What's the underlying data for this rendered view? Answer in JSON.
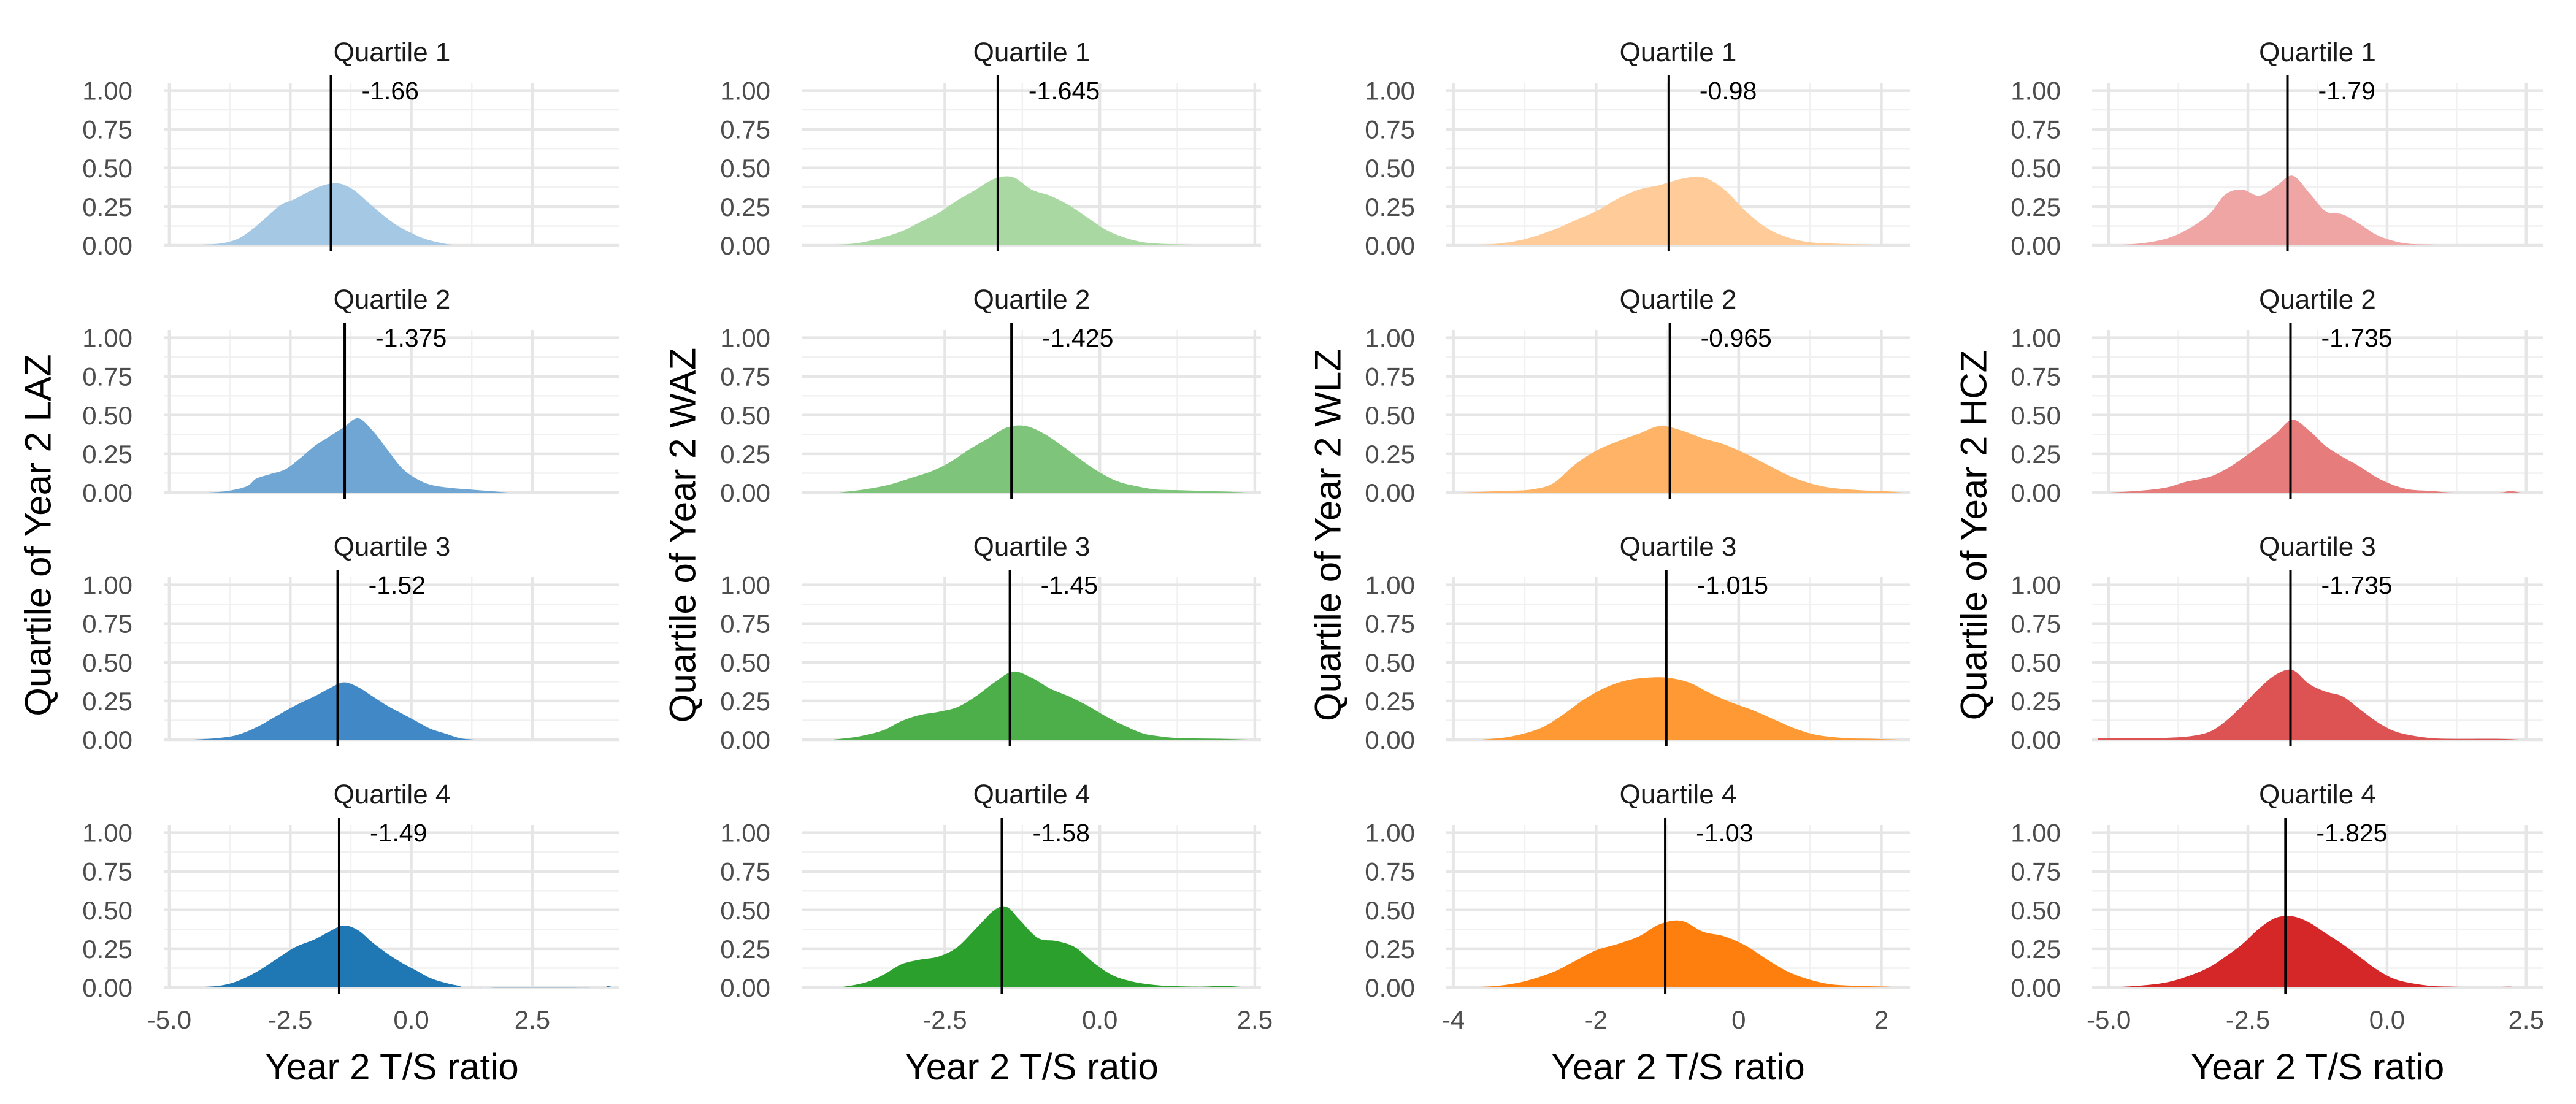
{
  "chart_data": [
    {
      "type": "area",
      "xlabel": "Year 2 T/S ratio",
      "ylabel": "Quartile of Year 2 LAZ",
      "xlim": [
        -5.1,
        4.3
      ],
      "ylim": [
        0,
        1.05
      ],
      "x_ticks": [
        -5.0,
        -2.5,
        0.0,
        2.5
      ],
      "x_tick_labels": [
        "-5.0",
        "-2.5",
        "0.0",
        "2.5"
      ],
      "y_ticks": [
        0,
        0.25,
        0.5,
        0.75,
        1.0
      ],
      "y_tick_labels": [
        "0.00",
        "0.25",
        "0.50",
        "0.75",
        "1.00"
      ],
      "grid": true,
      "colors": [
        "#a5c8e4",
        "#6fa6d3",
        "#4089c6",
        "#1f77b4"
      ],
      "panels": [
        {
          "strip": "Quartile 1",
          "median": -1.66,
          "median_label": "-1.66",
          "x": [
            -4.8,
            -4.0,
            -3.6,
            -3.3,
            -3.0,
            -2.7,
            -2.4,
            -2.1,
            -1.8,
            -1.5,
            -1.2,
            -0.9,
            -0.6,
            -0.3,
            0.0,
            0.3,
            0.7,
            1.0
          ],
          "y": [
            0,
            0.01,
            0.04,
            0.1,
            0.18,
            0.26,
            0.3,
            0.35,
            0.39,
            0.4,
            0.36,
            0.28,
            0.2,
            0.13,
            0.08,
            0.04,
            0.01,
            0
          ]
        },
        {
          "strip": "Quartile 2",
          "median": -1.375,
          "median_label": "-1.375",
          "x": [
            -4.2,
            -3.8,
            -3.4,
            -3.2,
            -2.9,
            -2.6,
            -2.3,
            -2.0,
            -1.7,
            -1.4,
            -1.1,
            -0.8,
            -0.5,
            -0.2,
            0.1,
            0.4,
            0.8,
            1.2,
            1.6,
            2.0
          ],
          "y": [
            0,
            0.01,
            0.04,
            0.09,
            0.12,
            0.15,
            0.22,
            0.3,
            0.36,
            0.42,
            0.48,
            0.4,
            0.28,
            0.16,
            0.09,
            0.05,
            0.03,
            0.02,
            0.01,
            0
          ]
        },
        {
          "strip": "Quartile 3",
          "median": -1.52,
          "median_label": "-1.52",
          "x": [
            -4.5,
            -4.0,
            -3.6,
            -3.2,
            -2.8,
            -2.4,
            -2.0,
            -1.7,
            -1.4,
            -1.1,
            -0.8,
            -0.5,
            -0.2,
            0.1,
            0.4,
            0.7,
            1.0,
            1.3
          ],
          "y": [
            0,
            0.01,
            0.03,
            0.08,
            0.15,
            0.22,
            0.28,
            0.33,
            0.37,
            0.34,
            0.28,
            0.22,
            0.17,
            0.12,
            0.07,
            0.04,
            0.01,
            0
          ]
        },
        {
          "strip": "Quartile 4",
          "median": -1.49,
          "median_label": "-1.49",
          "x": [
            -4.6,
            -4.0,
            -3.6,
            -3.2,
            -2.8,
            -2.4,
            -2.0,
            -1.7,
            -1.4,
            -1.1,
            -0.8,
            -0.5,
            -0.2,
            0.1,
            0.4,
            0.7,
            1.0,
            1.3,
            3.8,
            4.0,
            4.2
          ],
          "y": [
            0,
            0.01,
            0.04,
            0.1,
            0.18,
            0.26,
            0.31,
            0.36,
            0.4,
            0.37,
            0.29,
            0.22,
            0.16,
            0.11,
            0.06,
            0.03,
            0.01,
            0,
            0,
            0.01,
            0
          ]
        }
      ]
    },
    {
      "type": "area",
      "xlabel": "Year 2 T/S ratio",
      "ylabel": "Quartile of Year 2 WAZ",
      "xlim": [
        -4.8,
        2.6
      ],
      "ylim": [
        0,
        1.05
      ],
      "x_ticks": [
        -2.5,
        0.0,
        2.5
      ],
      "x_tick_labels": [
        "-2.5",
        "0.0",
        "2.5"
      ],
      "y_ticks": [
        0,
        0.25,
        0.5,
        0.75,
        1.0
      ],
      "y_tick_labels": [
        "0.00",
        "0.25",
        "0.50",
        "0.75",
        "1.00"
      ],
      "grid": true,
      "colors": [
        "#a9d8a2",
        "#7fc47b",
        "#4daf4a",
        "#2ca02c"
      ],
      "panels": [
        {
          "strip": "Quartile 1",
          "median": -1.645,
          "median_label": "-1.645",
          "x": [
            -4.6,
            -4.0,
            -3.6,
            -3.2,
            -2.9,
            -2.6,
            -2.3,
            -2.0,
            -1.7,
            -1.4,
            -1.1,
            -0.8,
            -0.5,
            -0.2,
            0.1,
            0.4,
            0.7,
            1.0,
            1.4,
            1.8,
            2.2
          ],
          "y": [
            0,
            0.01,
            0.04,
            0.09,
            0.15,
            0.21,
            0.29,
            0.36,
            0.43,
            0.44,
            0.36,
            0.32,
            0.26,
            0.18,
            0.1,
            0.05,
            0.02,
            0.01,
            0.005,
            0.002,
            0
          ]
        },
        {
          "strip": "Quartile 2",
          "median": -1.425,
          "median_label": "-1.425",
          "x": [
            -4.2,
            -3.8,
            -3.4,
            -3.0,
            -2.7,
            -2.4,
            -2.1,
            -1.8,
            -1.5,
            -1.2,
            -0.9,
            -0.6,
            -0.3,
            0.0,
            0.3,
            0.6,
            0.9,
            1.3,
            1.7,
            2.1,
            2.4
          ],
          "y": [
            0,
            0.02,
            0.05,
            0.1,
            0.14,
            0.2,
            0.28,
            0.35,
            0.42,
            0.43,
            0.38,
            0.3,
            0.21,
            0.13,
            0.07,
            0.04,
            0.02,
            0.015,
            0.01,
            0.005,
            0
          ]
        },
        {
          "strip": "Quartile 3",
          "median": -1.45,
          "median_label": "-1.45",
          "x": [
            -4.3,
            -3.9,
            -3.5,
            -3.2,
            -2.9,
            -2.6,
            -2.3,
            -2.0,
            -1.7,
            -1.4,
            -1.1,
            -0.8,
            -0.5,
            -0.2,
            0.1,
            0.4,
            0.7,
            1.0,
            1.3,
            2.0,
            2.4
          ],
          "y": [
            0,
            0.02,
            0.06,
            0.12,
            0.16,
            0.18,
            0.21,
            0.28,
            0.37,
            0.44,
            0.4,
            0.33,
            0.28,
            0.22,
            0.15,
            0.09,
            0.04,
            0.02,
            0.01,
            0.005,
            0
          ]
        },
        {
          "strip": "Quartile 4",
          "median": -1.58,
          "median_label": "-1.58",
          "x": [
            -4.2,
            -3.8,
            -3.5,
            -3.2,
            -2.9,
            -2.6,
            -2.3,
            -2.0,
            -1.7,
            -1.5,
            -1.3,
            -1.0,
            -0.7,
            -0.4,
            -0.1,
            0.2,
            0.5,
            0.8,
            1.1,
            1.6,
            2.0,
            2.4
          ],
          "y": [
            0,
            0.03,
            0.08,
            0.15,
            0.18,
            0.2,
            0.26,
            0.38,
            0.5,
            0.52,
            0.44,
            0.32,
            0.3,
            0.26,
            0.16,
            0.08,
            0.04,
            0.02,
            0.01,
            0.005,
            0.01,
            0
          ]
        }
      ]
    },
    {
      "type": "area",
      "xlabel": "Year 2 T/S ratio",
      "ylabel": "Quartile of Year 2 WLZ",
      "xlim": [
        -4.1,
        2.4
      ],
      "ylim": [
        0,
        1.05
      ],
      "x_ticks": [
        -4,
        -2,
        0,
        2
      ],
      "x_tick_labels": [
        "-4",
        "-2",
        "0",
        "2"
      ],
      "y_ticks": [
        0,
        0.25,
        0.5,
        0.75,
        1.0
      ],
      "y_tick_labels": [
        "0.00",
        "0.25",
        "0.50",
        "0.75",
        "1.00"
      ],
      "grid": true,
      "colors": [
        "#ffcc99",
        "#ffb366",
        "#ff9933",
        "#ff7f0e"
      ],
      "panels": [
        {
          "strip": "Quartile 1",
          "median": -0.98,
          "median_label": "-0.98",
          "x": [
            -3.9,
            -3.4,
            -3.0,
            -2.6,
            -2.3,
            -2.0,
            -1.7,
            -1.4,
            -1.1,
            -0.8,
            -0.5,
            -0.2,
            0.1,
            0.4,
            0.7,
            1.0,
            1.4,
            1.8,
            2.2
          ],
          "y": [
            0,
            0.01,
            0.04,
            0.1,
            0.16,
            0.22,
            0.3,
            0.36,
            0.39,
            0.43,
            0.44,
            0.36,
            0.22,
            0.11,
            0.05,
            0.02,
            0.01,
            0.005,
            0
          ]
        },
        {
          "strip": "Quartile 2",
          "median": -0.965,
          "median_label": "-0.965",
          "x": [
            -3.9,
            -3.3,
            -2.9,
            -2.6,
            -2.3,
            -2.0,
            -1.7,
            -1.4,
            -1.1,
            -0.8,
            -0.5,
            -0.2,
            0.1,
            0.4,
            0.7,
            1.0,
            1.3,
            1.7,
            2.0,
            2.3
          ],
          "y": [
            0,
            0.01,
            0.02,
            0.06,
            0.18,
            0.27,
            0.33,
            0.38,
            0.43,
            0.4,
            0.35,
            0.31,
            0.25,
            0.18,
            0.11,
            0.06,
            0.03,
            0.015,
            0.01,
            0
          ]
        },
        {
          "strip": "Quartile 3",
          "median": -1.015,
          "median_label": "-1.015",
          "x": [
            -3.6,
            -3.2,
            -2.8,
            -2.5,
            -2.2,
            -1.9,
            -1.6,
            -1.3,
            -1.0,
            -0.7,
            -0.4,
            -0.1,
            0.2,
            0.5,
            0.8,
            1.1,
            1.5,
            1.9,
            2.3
          ],
          "y": [
            0,
            0.02,
            0.07,
            0.15,
            0.25,
            0.33,
            0.38,
            0.4,
            0.4,
            0.37,
            0.3,
            0.24,
            0.19,
            0.13,
            0.07,
            0.03,
            0.01,
            0.005,
            0
          ]
        },
        {
          "strip": "Quartile 4",
          "median": -1.03,
          "median_label": "-1.03",
          "x": [
            -3.9,
            -3.4,
            -3.0,
            -2.6,
            -2.3,
            -2.0,
            -1.7,
            -1.4,
            -1.1,
            -0.8,
            -0.5,
            -0.2,
            0.1,
            0.4,
            0.7,
            1.0,
            1.3,
            1.7,
            2.1,
            2.3
          ],
          "y": [
            0,
            0.01,
            0.04,
            0.1,
            0.17,
            0.24,
            0.28,
            0.33,
            0.41,
            0.43,
            0.36,
            0.33,
            0.27,
            0.18,
            0.1,
            0.05,
            0.02,
            0.01,
            0.005,
            0
          ]
        }
      ]
    },
    {
      "type": "area",
      "xlabel": "Year 2 T/S ratio",
      "ylabel": "Quartile of Year 2 HCZ",
      "xlim": [
        -5.3,
        2.8
      ],
      "ylim": [
        0,
        1.05
      ],
      "x_ticks": [
        -5.0,
        -2.5,
        0.0,
        2.5
      ],
      "x_tick_labels": [
        "-5.0",
        "-2.5",
        "0.0",
        "2.5"
      ],
      "y_ticks": [
        0,
        0.25,
        0.5,
        0.75,
        1.0
      ],
      "y_tick_labels": [
        "0.00",
        "0.25",
        "0.50",
        "0.75",
        "1.00"
      ],
      "grid": true,
      "colors": [
        "#f0a5a5",
        "#e67c7c",
        "#dd5353",
        "#d62728"
      ],
      "panels": [
        {
          "strip": "Quartile 1",
          "median": -1.79,
          "median_label": "-1.79",
          "x": [
            -5.1,
            -4.5,
            -4.0,
            -3.6,
            -3.2,
            -2.9,
            -2.6,
            -2.3,
            -2.0,
            -1.7,
            -1.4,
            -1.1,
            -0.8,
            -0.5,
            -0.2,
            0.1,
            0.4,
            0.8,
            1.2
          ],
          "y": [
            0,
            0.01,
            0.04,
            0.1,
            0.2,
            0.33,
            0.36,
            0.32,
            0.38,
            0.45,
            0.34,
            0.22,
            0.2,
            0.14,
            0.07,
            0.03,
            0.01,
            0.005,
            0
          ]
        },
        {
          "strip": "Quartile 2",
          "median": -1.735,
          "median_label": "-1.735",
          "x": [
            -5.0,
            -4.5,
            -4.0,
            -3.6,
            -3.2,
            -2.9,
            -2.6,
            -2.3,
            -2.0,
            -1.7,
            -1.4,
            -1.1,
            -0.8,
            -0.5,
            -0.2,
            0.1,
            0.4,
            0.8,
            1.2,
            2.0,
            2.2,
            2.4
          ],
          "y": [
            0,
            0.01,
            0.03,
            0.07,
            0.1,
            0.15,
            0.22,
            0.3,
            0.38,
            0.47,
            0.4,
            0.3,
            0.23,
            0.17,
            0.1,
            0.05,
            0.02,
            0.01,
            0,
            0,
            0.01,
            0
          ]
        },
        {
          "strip": "Quartile 3",
          "median": -1.735,
          "median_label": "-1.735",
          "x": [
            -5.2,
            -4.8,
            -4.2,
            -3.6,
            -3.2,
            -2.9,
            -2.6,
            -2.3,
            -2.0,
            -1.7,
            -1.4,
            -1.1,
            -0.8,
            -0.5,
            -0.2,
            0.1,
            0.4,
            0.8,
            1.2,
            2.0,
            2.4
          ],
          "y": [
            0.01,
            0.01,
            0.01,
            0.02,
            0.05,
            0.12,
            0.22,
            0.33,
            0.42,
            0.45,
            0.36,
            0.31,
            0.28,
            0.2,
            0.12,
            0.06,
            0.03,
            0.01,
            0.005,
            0.005,
            0
          ]
        },
        {
          "strip": "Quartile 4",
          "median": -1.825,
          "median_label": "-1.825",
          "x": [
            -5.0,
            -4.5,
            -4.0,
            -3.6,
            -3.2,
            -2.9,
            -2.6,
            -2.3,
            -2.0,
            -1.7,
            -1.4,
            -1.1,
            -0.8,
            -0.5,
            -0.2,
            0.1,
            0.4,
            0.8,
            1.2,
            1.8,
            2.2,
            2.4
          ],
          "y": [
            0,
            0.01,
            0.03,
            0.07,
            0.13,
            0.2,
            0.28,
            0.38,
            0.45,
            0.46,
            0.42,
            0.35,
            0.28,
            0.2,
            0.12,
            0.06,
            0.03,
            0.01,
            0.005,
            0.002,
            0.005,
            0
          ]
        }
      ]
    }
  ]
}
